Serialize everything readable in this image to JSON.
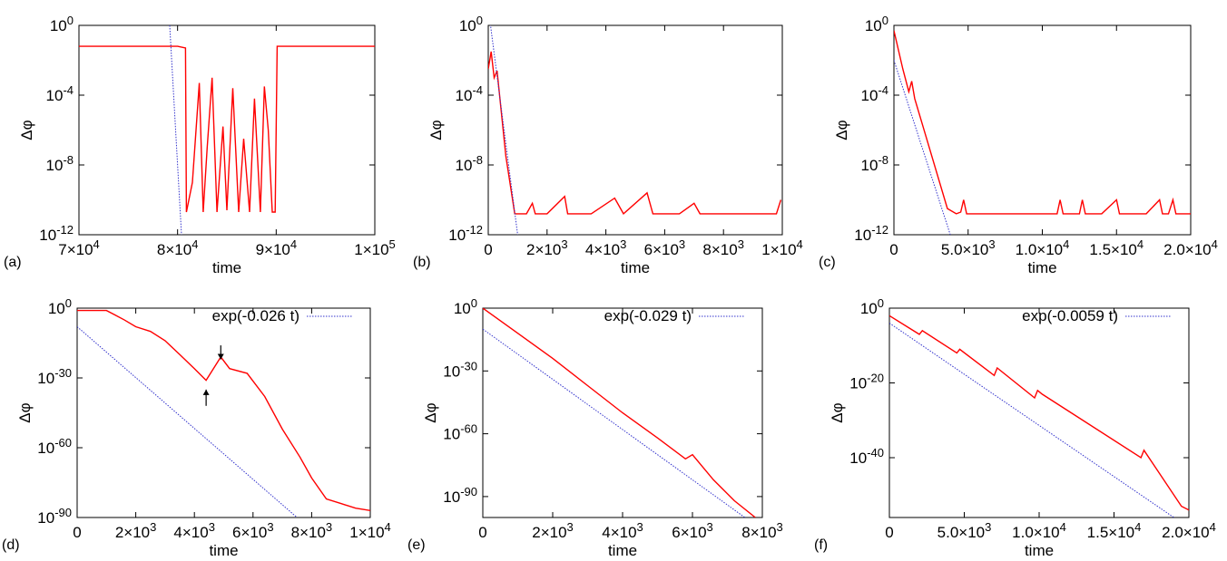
{
  "chart_data": [
    {
      "panel": "(a)",
      "type": "line",
      "xlabel": "time",
      "ylabel": "Δφ",
      "xlim": [
        70000,
        100000
      ],
      "y_scale": "log",
      "ylim": [
        "1e-12",
        "1e0"
      ],
      "x_ticks": [
        {
          "v": 70000,
          "m": "7×10",
          "e": "4"
        },
        {
          "v": 80000,
          "m": "8×10",
          "e": "4"
        },
        {
          "v": 90000,
          "m": "9×10",
          "e": "4"
        },
        {
          "v": 100000,
          "m": "1×10",
          "e": "5"
        }
      ],
      "y_ticks": [
        {
          "v": 0,
          "m": "10",
          "e": "0"
        },
        {
          "v": -4,
          "m": "10",
          "e": "-4"
        },
        {
          "v": -8,
          "m": "10",
          "e": "-8"
        },
        {
          "v": -12,
          "m": "10",
          "e": "-12"
        }
      ],
      "series": [
        {
          "color": "#ff0000",
          "style": "solid",
          "points": [
            [
              70000,
              -1.2
            ],
            [
              75000,
              -1.2
            ],
            [
              80000,
              -1.2
            ],
            [
              80800,
              -1.3
            ],
            [
              80900,
              -10.7
            ],
            [
              81500,
              -9
            ],
            [
              82200,
              -3.3
            ],
            [
              82600,
              -10.7
            ],
            [
              83000,
              -7
            ],
            [
              83500,
              -3
            ],
            [
              84000,
              -10.7
            ],
            [
              84600,
              -5.8
            ],
            [
              85000,
              -10.6
            ],
            [
              85600,
              -3.6
            ],
            [
              86200,
              -10.7
            ],
            [
              86700,
              -6.5
            ],
            [
              87300,
              -10.7
            ],
            [
              87800,
              -4.2
            ],
            [
              88400,
              -10.7
            ],
            [
              88800,
              -3.5
            ],
            [
              89200,
              -6
            ],
            [
              89600,
              -10.7
            ],
            [
              89900,
              -10.7
            ],
            [
              90100,
              -1.2
            ],
            [
              95000,
              -1.2
            ],
            [
              100000,
              -1.2
            ]
          ]
        },
        {
          "color": "#3333cc",
          "style": "dotted",
          "points": [
            [
              79200,
              0
            ],
            [
              80400,
              -12
            ]
          ]
        }
      ]
    },
    {
      "panel": "(b)",
      "type": "line",
      "xlabel": "time",
      "ylabel": "Δφ",
      "xlim": [
        0,
        10000
      ],
      "y_scale": "log",
      "ylim": [
        "1e-12",
        "1e0"
      ],
      "x_ticks": [
        {
          "v": 0,
          "m": "0",
          "e": ""
        },
        {
          "v": 2000,
          "m": "2×10",
          "e": "3"
        },
        {
          "v": 4000,
          "m": "4×10",
          "e": "3"
        },
        {
          "v": 6000,
          "m": "6×10",
          "e": "3"
        },
        {
          "v": 8000,
          "m": "8×10",
          "e": "3"
        },
        {
          "v": 10000,
          "m": "1×10",
          "e": "4"
        }
      ],
      "y_ticks": [
        {
          "v": 0,
          "m": "10",
          "e": "0"
        },
        {
          "v": -4,
          "m": "10",
          "e": "-4"
        },
        {
          "v": -8,
          "m": "10",
          "e": "-8"
        },
        {
          "v": -12,
          "m": "10",
          "e": "-12"
        }
      ],
      "series": [
        {
          "color": "#ff0000",
          "style": "solid",
          "points": [
            [
              0,
              -2.5
            ],
            [
              100,
              -1.5
            ],
            [
              200,
              -3
            ],
            [
              300,
              -2.6
            ],
            [
              600,
              -7.5
            ],
            [
              900,
              -10.8
            ],
            [
              1300,
              -10.8
            ],
            [
              1500,
              -10.2
            ],
            [
              1600,
              -10.8
            ],
            [
              2000,
              -10.8
            ],
            [
              2600,
              -9.8
            ],
            [
              2700,
              -10.8
            ],
            [
              3500,
              -10.8
            ],
            [
              4300,
              -9.9
            ],
            [
              4600,
              -10.8
            ],
            [
              5400,
              -9.6
            ],
            [
              5600,
              -10.8
            ],
            [
              6500,
              -10.8
            ],
            [
              7000,
              -10.2
            ],
            [
              7200,
              -10.8
            ],
            [
              8000,
              -10.8
            ],
            [
              9000,
              -10.8
            ],
            [
              9800,
              -10.8
            ],
            [
              9950,
              -10
            ]
          ]
        },
        {
          "color": "#3333cc",
          "style": "dotted",
          "points": [
            [
              0,
              1
            ],
            [
              1000,
              -12
            ]
          ]
        }
      ]
    },
    {
      "panel": "(c)",
      "type": "line",
      "xlabel": "time",
      "ylabel": "Δφ",
      "xlim": [
        0,
        20000
      ],
      "y_scale": "log",
      "ylim": [
        "1e-12",
        "1e0"
      ],
      "x_ticks": [
        {
          "v": 0,
          "m": "0",
          "e": ""
        },
        {
          "v": 5000,
          "m": "5.0×10",
          "e": "3"
        },
        {
          "v": 10000,
          "m": "1.0×10",
          "e": "4"
        },
        {
          "v": 15000,
          "m": "1.5×10",
          "e": "4"
        },
        {
          "v": 20000,
          "m": "2.0×10",
          "e": "4"
        }
      ],
      "y_ticks": [
        {
          "v": 0,
          "m": "10",
          "e": "0"
        },
        {
          "v": -4,
          "m": "10",
          "e": "-4"
        },
        {
          "v": -8,
          "m": "10",
          "e": "-8"
        },
        {
          "v": -12,
          "m": "10",
          "e": "-12"
        }
      ],
      "series": [
        {
          "color": "#ff0000",
          "style": "solid",
          "points": [
            [
              0,
              -0.3
            ],
            [
              600,
              -2.5
            ],
            [
              1000,
              -3.8
            ],
            [
              1200,
              -3.2
            ],
            [
              1400,
              -4.2
            ],
            [
              3600,
              -10.5
            ],
            [
              4200,
              -10.8
            ],
            [
              4500,
              -10.7
            ],
            [
              4700,
              -10
            ],
            [
              4900,
              -10.8
            ],
            [
              6000,
              -10.8
            ],
            [
              10000,
              -10.8
            ],
            [
              11000,
              -10.8
            ],
            [
              11200,
              -10
            ],
            [
              11400,
              -10.8
            ],
            [
              12500,
              -10.8
            ],
            [
              12700,
              -10
            ],
            [
              12900,
              -10.8
            ],
            [
              14000,
              -10.8
            ],
            [
              15000,
              -10
            ],
            [
              15200,
              -10.8
            ],
            [
              17000,
              -10.8
            ],
            [
              17900,
              -10
            ],
            [
              18100,
              -10.8
            ],
            [
              18500,
              -10.8
            ],
            [
              18800,
              -10
            ],
            [
              19000,
              -10.8
            ],
            [
              20000,
              -10.8
            ]
          ]
        },
        {
          "color": "#3333cc",
          "style": "dotted",
          "points": [
            [
              0,
              -2
            ],
            [
              3800,
              -12
            ]
          ]
        }
      ]
    },
    {
      "panel": "(d)",
      "type": "line",
      "xlabel": "time",
      "ylabel": "Δφ",
      "xlim": [
        0,
        10000
      ],
      "y_scale": "log",
      "ylim": [
        "1e-90",
        "1e0"
      ],
      "x_ticks": [
        {
          "v": 0,
          "m": "0",
          "e": ""
        },
        {
          "v": 2000,
          "m": "2×10",
          "e": "3"
        },
        {
          "v": 4000,
          "m": "4×10",
          "e": "3"
        },
        {
          "v": 6000,
          "m": "6×10",
          "e": "3"
        },
        {
          "v": 8000,
          "m": "8×10",
          "e": "3"
        },
        {
          "v": 10000,
          "m": "1×10",
          "e": "4"
        }
      ],
      "y_ticks": [
        {
          "v": 0,
          "m": "10",
          "e": "0"
        },
        {
          "v": -30,
          "m": "10",
          "e": "-30"
        },
        {
          "v": -60,
          "m": "10",
          "e": "-60"
        },
        {
          "v": -90,
          "m": "10",
          "e": "-90"
        }
      ],
      "legend": {
        "label": "exp(-0.026 t)",
        "position": "top-right"
      },
      "annotations": [
        "arrow-down",
        "arrow-up"
      ],
      "series": [
        {
          "color": "#ff0000",
          "style": "solid",
          "points": [
            [
              0,
              -1
            ],
            [
              1000,
              -1
            ],
            [
              1600,
              -5
            ],
            [
              2000,
              -8
            ],
            [
              2500,
              -10
            ],
            [
              3000,
              -14
            ],
            [
              3500,
              -20
            ],
            [
              4000,
              -26
            ],
            [
              4400,
              -31
            ],
            [
              4900,
              -21
            ],
            [
              5200,
              -26
            ],
            [
              5800,
              -28
            ],
            [
              6400,
              -38
            ],
            [
              7000,
              -52
            ],
            [
              7600,
              -64
            ],
            [
              8000,
              -73
            ],
            [
              8500,
              -82
            ],
            [
              9000,
              -84
            ],
            [
              9500,
              -86
            ],
            [
              10000,
              -87
            ]
          ]
        },
        {
          "color": "#3333cc",
          "style": "dotted",
          "points": [
            [
              0,
              -8
            ],
            [
              7500,
              -90
            ]
          ]
        }
      ]
    },
    {
      "panel": "(e)",
      "type": "line",
      "xlabel": "time",
      "ylabel": "Δφ",
      "xlim": [
        0,
        8000
      ],
      "y_scale": "log",
      "ylim": [
        "1e-100",
        "1e0"
      ],
      "x_ticks": [
        {
          "v": 0,
          "m": "0",
          "e": ""
        },
        {
          "v": 2000,
          "m": "2×10",
          "e": "3"
        },
        {
          "v": 4000,
          "m": "4×10",
          "e": "3"
        },
        {
          "v": 6000,
          "m": "6×10",
          "e": "3"
        },
        {
          "v": 8000,
          "m": "8×10",
          "e": "3"
        }
      ],
      "y_ticks": [
        {
          "v": 0,
          "m": "10",
          "e": "0"
        },
        {
          "v": -30,
          "m": "10",
          "e": "-30"
        },
        {
          "v": -60,
          "m": "10",
          "e": "-60"
        },
        {
          "v": -90,
          "m": "10",
          "e": "-90"
        }
      ],
      "legend": {
        "label": "exp(-0.029 t)",
        "position": "top-right"
      },
      "series": [
        {
          "color": "#ff0000",
          "style": "solid",
          "points": [
            [
              0,
              0
            ],
            [
              1000,
              -12
            ],
            [
              2000,
              -24
            ],
            [
              3000,
              -37
            ],
            [
              4000,
              -50
            ],
            [
              5000,
              -62
            ],
            [
              5800,
              -72
            ],
            [
              6000,
              -70
            ],
            [
              6600,
              -82
            ],
            [
              7200,
              -92
            ],
            [
              7800,
              -100
            ]
          ]
        },
        {
          "color": "#3333cc",
          "style": "dotted",
          "points": [
            [
              0,
              -10
            ],
            [
              7500,
              -100
            ]
          ]
        }
      ]
    },
    {
      "panel": "(f)",
      "type": "line",
      "xlabel": "time",
      "ylabel": "Δφ",
      "xlim": [
        0,
        20000
      ],
      "y_scale": "log",
      "ylim": [
        "1e-56",
        "1e0"
      ],
      "x_ticks": [
        {
          "v": 0,
          "m": "0",
          "e": ""
        },
        {
          "v": 5000,
          "m": "5.0×10",
          "e": "3"
        },
        {
          "v": 10000,
          "m": "1.0×10",
          "e": "4"
        },
        {
          "v": 15000,
          "m": "1.5×10",
          "e": "4"
        },
        {
          "v": 20000,
          "m": "2.0×10",
          "e": "4"
        }
      ],
      "y_ticks": [
        {
          "v": 0,
          "m": "10",
          "e": "0"
        },
        {
          "v": -20,
          "m": "10",
          "e": "-20"
        },
        {
          "v": -40,
          "m": "10",
          "e": "-40"
        }
      ],
      "legend": {
        "label": "exp(-0.0059 t)",
        "position": "top-right"
      },
      "series": [
        {
          "color": "#ff0000",
          "style": "solid",
          "points": [
            [
              0,
              -2
            ],
            [
              2000,
              -7
            ],
            [
              2200,
              -6
            ],
            [
              4500,
              -12
            ],
            [
              4700,
              -11
            ],
            [
              7000,
              -18
            ],
            [
              7200,
              -16
            ],
            [
              9700,
              -24
            ],
            [
              9900,
              -22
            ],
            [
              10200,
              -23
            ],
            [
              16800,
              -40
            ],
            [
              17000,
              -38
            ],
            [
              19500,
              -53
            ],
            [
              20000,
              -54
            ]
          ]
        },
        {
          "color": "#3333cc",
          "style": "dotted",
          "points": [
            [
              0,
              -4
            ],
            [
              19000,
              -56
            ]
          ]
        }
      ]
    }
  ]
}
